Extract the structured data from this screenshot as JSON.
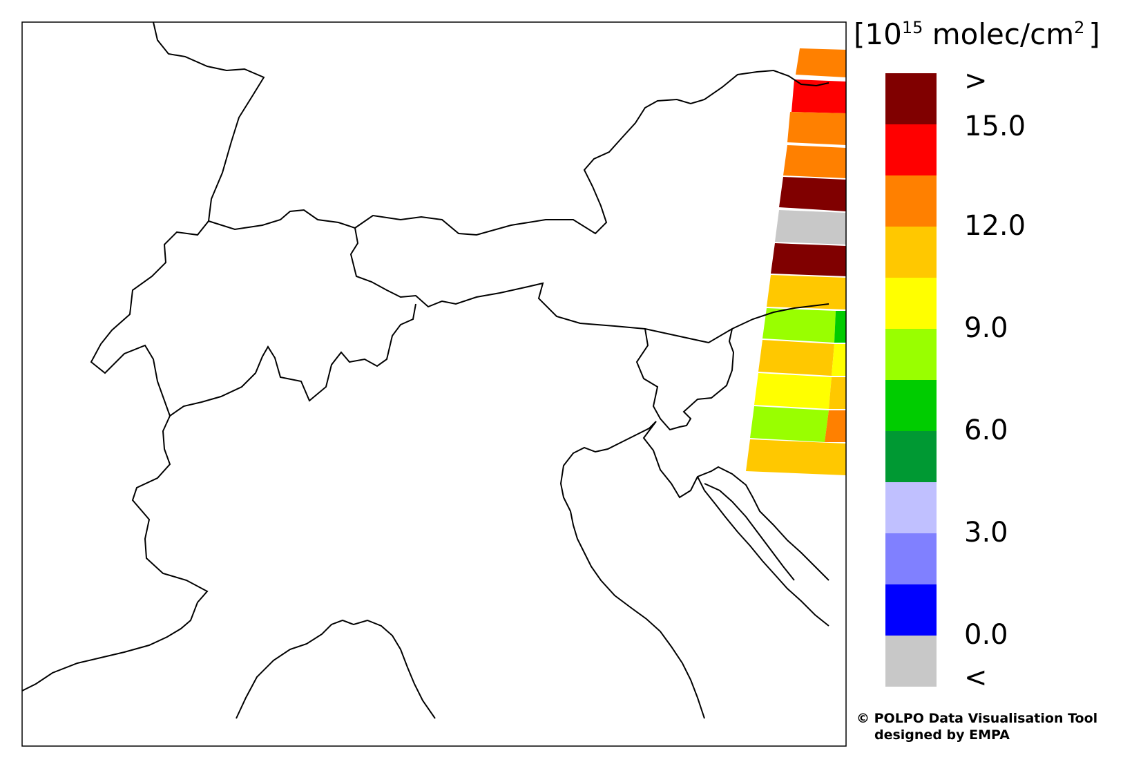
{
  "map": {
    "borders": [
      [
        [
          222,
          32
        ],
        [
          228,
          58
        ],
        [
          244,
          78
        ],
        [
          268,
          82
        ],
        [
          300,
          96
        ],
        [
          328,
          102
        ],
        [
          354,
          100
        ],
        [
          382,
          112
        ],
        [
          366,
          138
        ],
        [
          346,
          170
        ],
        [
          335,
          205
        ],
        [
          322,
          250
        ],
        [
          306,
          288
        ],
        [
          302,
          320
        ]
      ],
      [
        [
          302,
          320
        ],
        [
          286,
          340
        ],
        [
          256,
          336
        ],
        [
          238,
          354
        ],
        [
          240,
          380
        ],
        [
          220,
          400
        ],
        [
          192,
          420
        ],
        [
          188,
          455
        ],
        [
          162,
          478
        ],
        [
          146,
          498
        ],
        [
          132,
          524
        ],
        [
          152,
          540
        ],
        [
          180,
          512
        ],
        [
          210,
          500
        ],
        [
          222,
          520
        ],
        [
          228,
          552
        ],
        [
          246,
          602
        ]
      ],
      [
        [
          302,
          320
        ],
        [
          340,
          332
        ],
        [
          380,
          326
        ],
        [
          406,
          318
        ],
        [
          420,
          306
        ],
        [
          440,
          304
        ],
        [
          460,
          318
        ],
        [
          490,
          322
        ],
        [
          514,
          330
        ],
        [
          518,
          352
        ],
        [
          508,
          368
        ],
        [
          516,
          400
        ],
        [
          538,
          408
        ],
        [
          560,
          420
        ],
        [
          580,
          430
        ],
        [
          602,
          428
        ],
        [
          620,
          444
        ],
        [
          640,
          436
        ],
        [
          660,
          440
        ],
        [
          690,
          430
        ],
        [
          724,
          424
        ],
        [
          760,
          416
        ],
        [
          786,
          410
        ],
        [
          780,
          432
        ],
        [
          806,
          458
        ],
        [
          840,
          468
        ],
        [
          890,
          472
        ],
        [
          934,
          476
        ],
        [
          980,
          486
        ],
        [
          1026,
          496
        ],
        [
          1060,
          476
        ],
        [
          1090,
          462
        ],
        [
          1120,
          452
        ],
        [
          1150,
          446
        ],
        [
          1200,
          440
        ]
      ],
      [
        [
          246,
          602
        ],
        [
          266,
          588
        ],
        [
          292,
          582
        ],
        [
          320,
          574
        ],
        [
          350,
          560
        ],
        [
          370,
          540
        ],
        [
          380,
          516
        ],
        [
          388,
          502
        ],
        [
          398,
          518
        ],
        [
          406,
          546
        ],
        [
          436,
          552
        ],
        [
          448,
          580
        ],
        [
          472,
          560
        ],
        [
          480,
          528
        ],
        [
          494,
          510
        ],
        [
          506,
          524
        ],
        [
          528,
          520
        ],
        [
          546,
          530
        ],
        [
          560,
          520
        ],
        [
          568,
          486
        ],
        [
          580,
          470
        ],
        [
          598,
          462
        ],
        [
          602,
          440
        ]
      ],
      [
        [
          514,
          330
        ],
        [
          540,
          312
        ],
        [
          580,
          318
        ],
        [
          610,
          314
        ],
        [
          640,
          318
        ],
        [
          664,
          338
        ],
        [
          690,
          340
        ],
        [
          740,
          326
        ],
        [
          790,
          318
        ],
        [
          830,
          318
        ],
        [
          862,
          338
        ],
        [
          878,
          322
        ],
        [
          870,
          298
        ],
        [
          858,
          270
        ],
        [
          846,
          246
        ],
        [
          860,
          230
        ],
        [
          882,
          220
        ],
        [
          900,
          200
        ],
        [
          920,
          178
        ],
        [
          934,
          156
        ],
        [
          952,
          146
        ],
        [
          980,
          144
        ],
        [
          1000,
          150
        ],
        [
          1020,
          144
        ],
        [
          1046,
          126
        ],
        [
          1068,
          108
        ],
        [
          1096,
          104
        ],
        [
          1120,
          102
        ],
        [
          1142,
          110
        ],
        [
          1160,
          122
        ],
        [
          1182,
          124
        ],
        [
          1200,
          120
        ]
      ],
      [
        [
          246,
          602
        ],
        [
          236,
          624
        ],
        [
          238,
          650
        ],
        [
          246,
          672
        ],
        [
          228,
          692
        ],
        [
          198,
          706
        ],
        [
          192,
          724
        ],
        [
          216,
          752
        ],
        [
          210,
          780
        ],
        [
          212,
          808
        ],
        [
          236,
          830
        ],
        [
          270,
          840
        ],
        [
          300,
          856
        ],
        [
          286,
          872
        ],
        [
          276,
          898
        ],
        [
          262,
          910
        ],
        [
          242,
          922
        ],
        [
          216,
          934
        ],
        [
          180,
          944
        ],
        [
          146,
          952
        ],
        [
          112,
          960
        ],
        [
          76,
          974
        ],
        [
          52,
          990
        ],
        [
          32,
          1000
        ]
      ],
      [
        [
          934,
          476
        ],
        [
          938,
          500
        ],
        [
          922,
          524
        ],
        [
          932,
          548
        ],
        [
          952,
          560
        ],
        [
          946,
          588
        ],
        [
          956,
          606
        ],
        [
          970,
          622
        ],
        [
          984,
          618
        ],
        [
          994,
          616
        ],
        [
          1000,
          606
        ],
        [
          990,
          596
        ],
        [
          1010,
          578
        ],
        [
          1030,
          576
        ],
        [
          1052,
          558
        ],
        [
          1060,
          536
        ],
        [
          1062,
          510
        ],
        [
          1056,
          494
        ],
        [
          1060,
          476
        ]
      ],
      [
        [
          950,
          610
        ],
        [
          932,
          634
        ],
        [
          946,
          652
        ],
        [
          956,
          680
        ],
        [
          972,
          700
        ],
        [
          984,
          720
        ],
        [
          1000,
          710
        ],
        [
          1010,
          690
        ],
        [
          1030,
          682
        ],
        [
          1040,
          676
        ],
        [
          1060,
          686
        ],
        [
          1080,
          702
        ],
        [
          1090,
          720
        ],
        [
          1100,
          740
        ],
        [
          1120,
          760
        ],
        [
          1140,
          782
        ],
        [
          1160,
          800
        ],
        [
          1180,
          820
        ],
        [
          1200,
          840
        ]
      ]
    ],
    "coastlines": [
      [
        [
          950,
          610
        ],
        [
          940,
          620
        ],
        [
          920,
          630
        ],
        [
          900,
          640
        ],
        [
          880,
          650
        ],
        [
          862,
          654
        ],
        [
          846,
          648
        ],
        [
          830,
          656
        ],
        [
          816,
          674
        ],
        [
          812,
          700
        ],
        [
          816,
          720
        ],
        [
          826,
          740
        ],
        [
          830,
          760
        ],
        [
          836,
          780
        ],
        [
          846,
          800
        ],
        [
          856,
          820
        ],
        [
          870,
          840
        ],
        [
          890,
          862
        ],
        [
          914,
          880
        ],
        [
          936,
          896
        ],
        [
          956,
          914
        ],
        [
          972,
          936
        ],
        [
          988,
          960
        ],
        [
          1000,
          984
        ],
        [
          1010,
          1010
        ],
        [
          1020,
          1040
        ]
      ],
      [
        [
          342,
          1040
        ],
        [
          356,
          1010
        ],
        [
          372,
          980
        ],
        [
          396,
          956
        ],
        [
          420,
          940
        ],
        [
          444,
          932
        ],
        [
          466,
          918
        ],
        [
          480,
          904
        ],
        [
          496,
          898
        ],
        [
          512,
          904
        ],
        [
          532,
          898
        ],
        [
          552,
          906
        ],
        [
          568,
          920
        ],
        [
          580,
          940
        ],
        [
          590,
          966
        ],
        [
          600,
          990
        ],
        [
          612,
          1014
        ],
        [
          630,
          1040
        ]
      ],
      [
        [
          1010,
          690
        ],
        [
          1020,
          710
        ],
        [
          1036,
          730
        ],
        [
          1050,
          748
        ],
        [
          1068,
          770
        ],
        [
          1086,
          790
        ],
        [
          1104,
          812
        ],
        [
          1122,
          832
        ],
        [
          1140,
          852
        ],
        [
          1160,
          870
        ],
        [
          1180,
          890
        ],
        [
          1200,
          906
        ]
      ],
      [
        [
          1020,
          700
        ],
        [
          1042,
          710
        ],
        [
          1060,
          726
        ],
        [
          1080,
          748
        ],
        [
          1098,
          772
        ],
        [
          1116,
          796
        ],
        [
          1134,
          820
        ],
        [
          1150,
          840
        ]
      ]
    ],
    "no2_pixels": [
      {
        "color": "#ff8000",
        "corners": [
          [
            1158,
            70
          ],
          [
            1225,
            72
          ],
          [
            1225,
            112
          ],
          [
            1152,
            108
          ]
        ]
      },
      {
        "color": "#ff0000",
        "corners": [
          [
            1150,
            115
          ],
          [
            1225,
            118
          ],
          [
            1225,
            164
          ],
          [
            1146,
            162
          ]
        ]
      },
      {
        "color": "#ff8000",
        "corners": [
          [
            1144,
            162
          ],
          [
            1225,
            164
          ],
          [
            1225,
            210
          ],
          [
            1140,
            206
          ]
        ]
      },
      {
        "color": "#ff8000",
        "corners": [
          [
            1140,
            210
          ],
          [
            1225,
            214
          ],
          [
            1225,
            258
          ],
          [
            1134,
            254
          ]
        ]
      },
      {
        "color": "#800000",
        "corners": [
          [
            1134,
            256
          ],
          [
            1225,
            260
          ],
          [
            1225,
            306
          ],
          [
            1128,
            300
          ]
        ]
      },
      {
        "color": "#c8c8c8",
        "corners": [
          [
            1128,
            304
          ],
          [
            1225,
            308
          ],
          [
            1225,
            354
          ],
          [
            1122,
            350
          ]
        ]
      },
      {
        "color": "#800000",
        "corners": [
          [
            1122,
            352
          ],
          [
            1225,
            356
          ],
          [
            1225,
            400
          ],
          [
            1116,
            396
          ]
        ]
      },
      {
        "color": "#ffc800",
        "corners": [
          [
            1116,
            398
          ],
          [
            1225,
            402
          ],
          [
            1225,
            448
          ],
          [
            1110,
            444
          ]
        ]
      },
      {
        "color": "#99ff00",
        "corners": [
          [
            1110,
            446
          ],
          [
            1210,
            450
          ],
          [
            1208,
            496
          ],
          [
            1104,
            490
          ]
        ]
      },
      {
        "color": "#00cc00",
        "corners": [
          [
            1210,
            450
          ],
          [
            1225,
            450
          ],
          [
            1225,
            496
          ],
          [
            1208,
            496
          ]
        ]
      },
      {
        "color": "#ffc800",
        "corners": [
          [
            1104,
            492
          ],
          [
            1208,
            498
          ],
          [
            1204,
            544
          ],
          [
            1098,
            538
          ]
        ]
      },
      {
        "color": "#ffff00",
        "corners": [
          [
            1208,
            498
          ],
          [
            1225,
            498
          ],
          [
            1225,
            544
          ],
          [
            1204,
            544
          ]
        ]
      },
      {
        "color": "#ffff00",
        "corners": [
          [
            1098,
            540
          ],
          [
            1204,
            546
          ],
          [
            1200,
            592
          ],
          [
            1092,
            586
          ]
        ]
      },
      {
        "color": "#ffc800",
        "corners": [
          [
            1204,
            546
          ],
          [
            1225,
            546
          ],
          [
            1225,
            592
          ],
          [
            1200,
            592
          ]
        ]
      },
      {
        "color": "#99ff00",
        "corners": [
          [
            1092,
            588
          ],
          [
            1200,
            594
          ],
          [
            1194,
            640
          ],
          [
            1086,
            634
          ]
        ]
      },
      {
        "color": "#ff8000",
        "corners": [
          [
            1200,
            594
          ],
          [
            1225,
            594
          ],
          [
            1225,
            640
          ],
          [
            1194,
            640
          ]
        ]
      },
      {
        "color": "#ffc800",
        "corners": [
          [
            1086,
            636
          ],
          [
            1225,
            642
          ],
          [
            1225,
            688
          ],
          [
            1080,
            682
          ]
        ]
      }
    ]
  },
  "legend": {
    "unit_open": "[10",
    "unit_exp": "15",
    "unit_rest": " molec/cm",
    "unit_exp2": "2",
    "unit_close": "]",
    "colors": [
      "#800000",
      "#ff0000",
      "#ff8000",
      "#ffc800",
      "#ffff00",
      "#99ff00",
      "#00cc00",
      "#009933",
      "#c0c0ff",
      "#8080ff",
      "#0000ff",
      "#c8c8c8"
    ],
    "labels": {
      "over": ">",
      "v15": "15.0",
      "v12": "12.0",
      "v9": "9.0",
      "v6": "6.0",
      "v3": "3.0",
      "v0": "0.0",
      "under": "<"
    }
  },
  "credit": {
    "line1": "© POLPO Data Visualisation Tool",
    "line2": "designed by EMPA"
  }
}
